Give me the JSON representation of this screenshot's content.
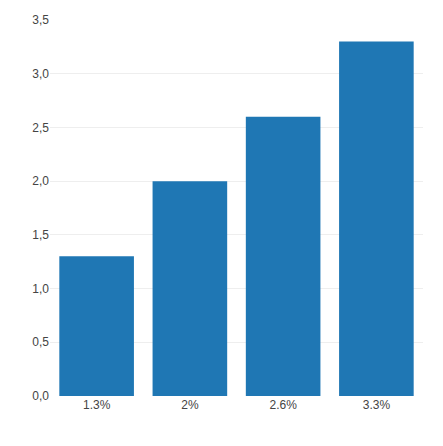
{
  "chart_data": {
    "type": "bar",
    "categories": [
      "1.3%",
      "2%",
      "2.6%",
      "3.3%"
    ],
    "values": [
      1.3,
      2.0,
      2.6,
      3.3
    ],
    "ylim": [
      0,
      3.5
    ],
    "yticks": [
      {
        "value": 0.0,
        "label": "0,0"
      },
      {
        "value": 0.5,
        "label": "0,5"
      },
      {
        "value": 1.0,
        "label": "1,0"
      },
      {
        "value": 1.5,
        "label": "1,5"
      },
      {
        "value": 2.0,
        "label": "2,0"
      },
      {
        "value": 2.5,
        "label": "2,5"
      },
      {
        "value": 3.0,
        "label": "3,0"
      },
      {
        "value": 3.5,
        "label": "3,5"
      }
    ],
    "grid": true
  }
}
